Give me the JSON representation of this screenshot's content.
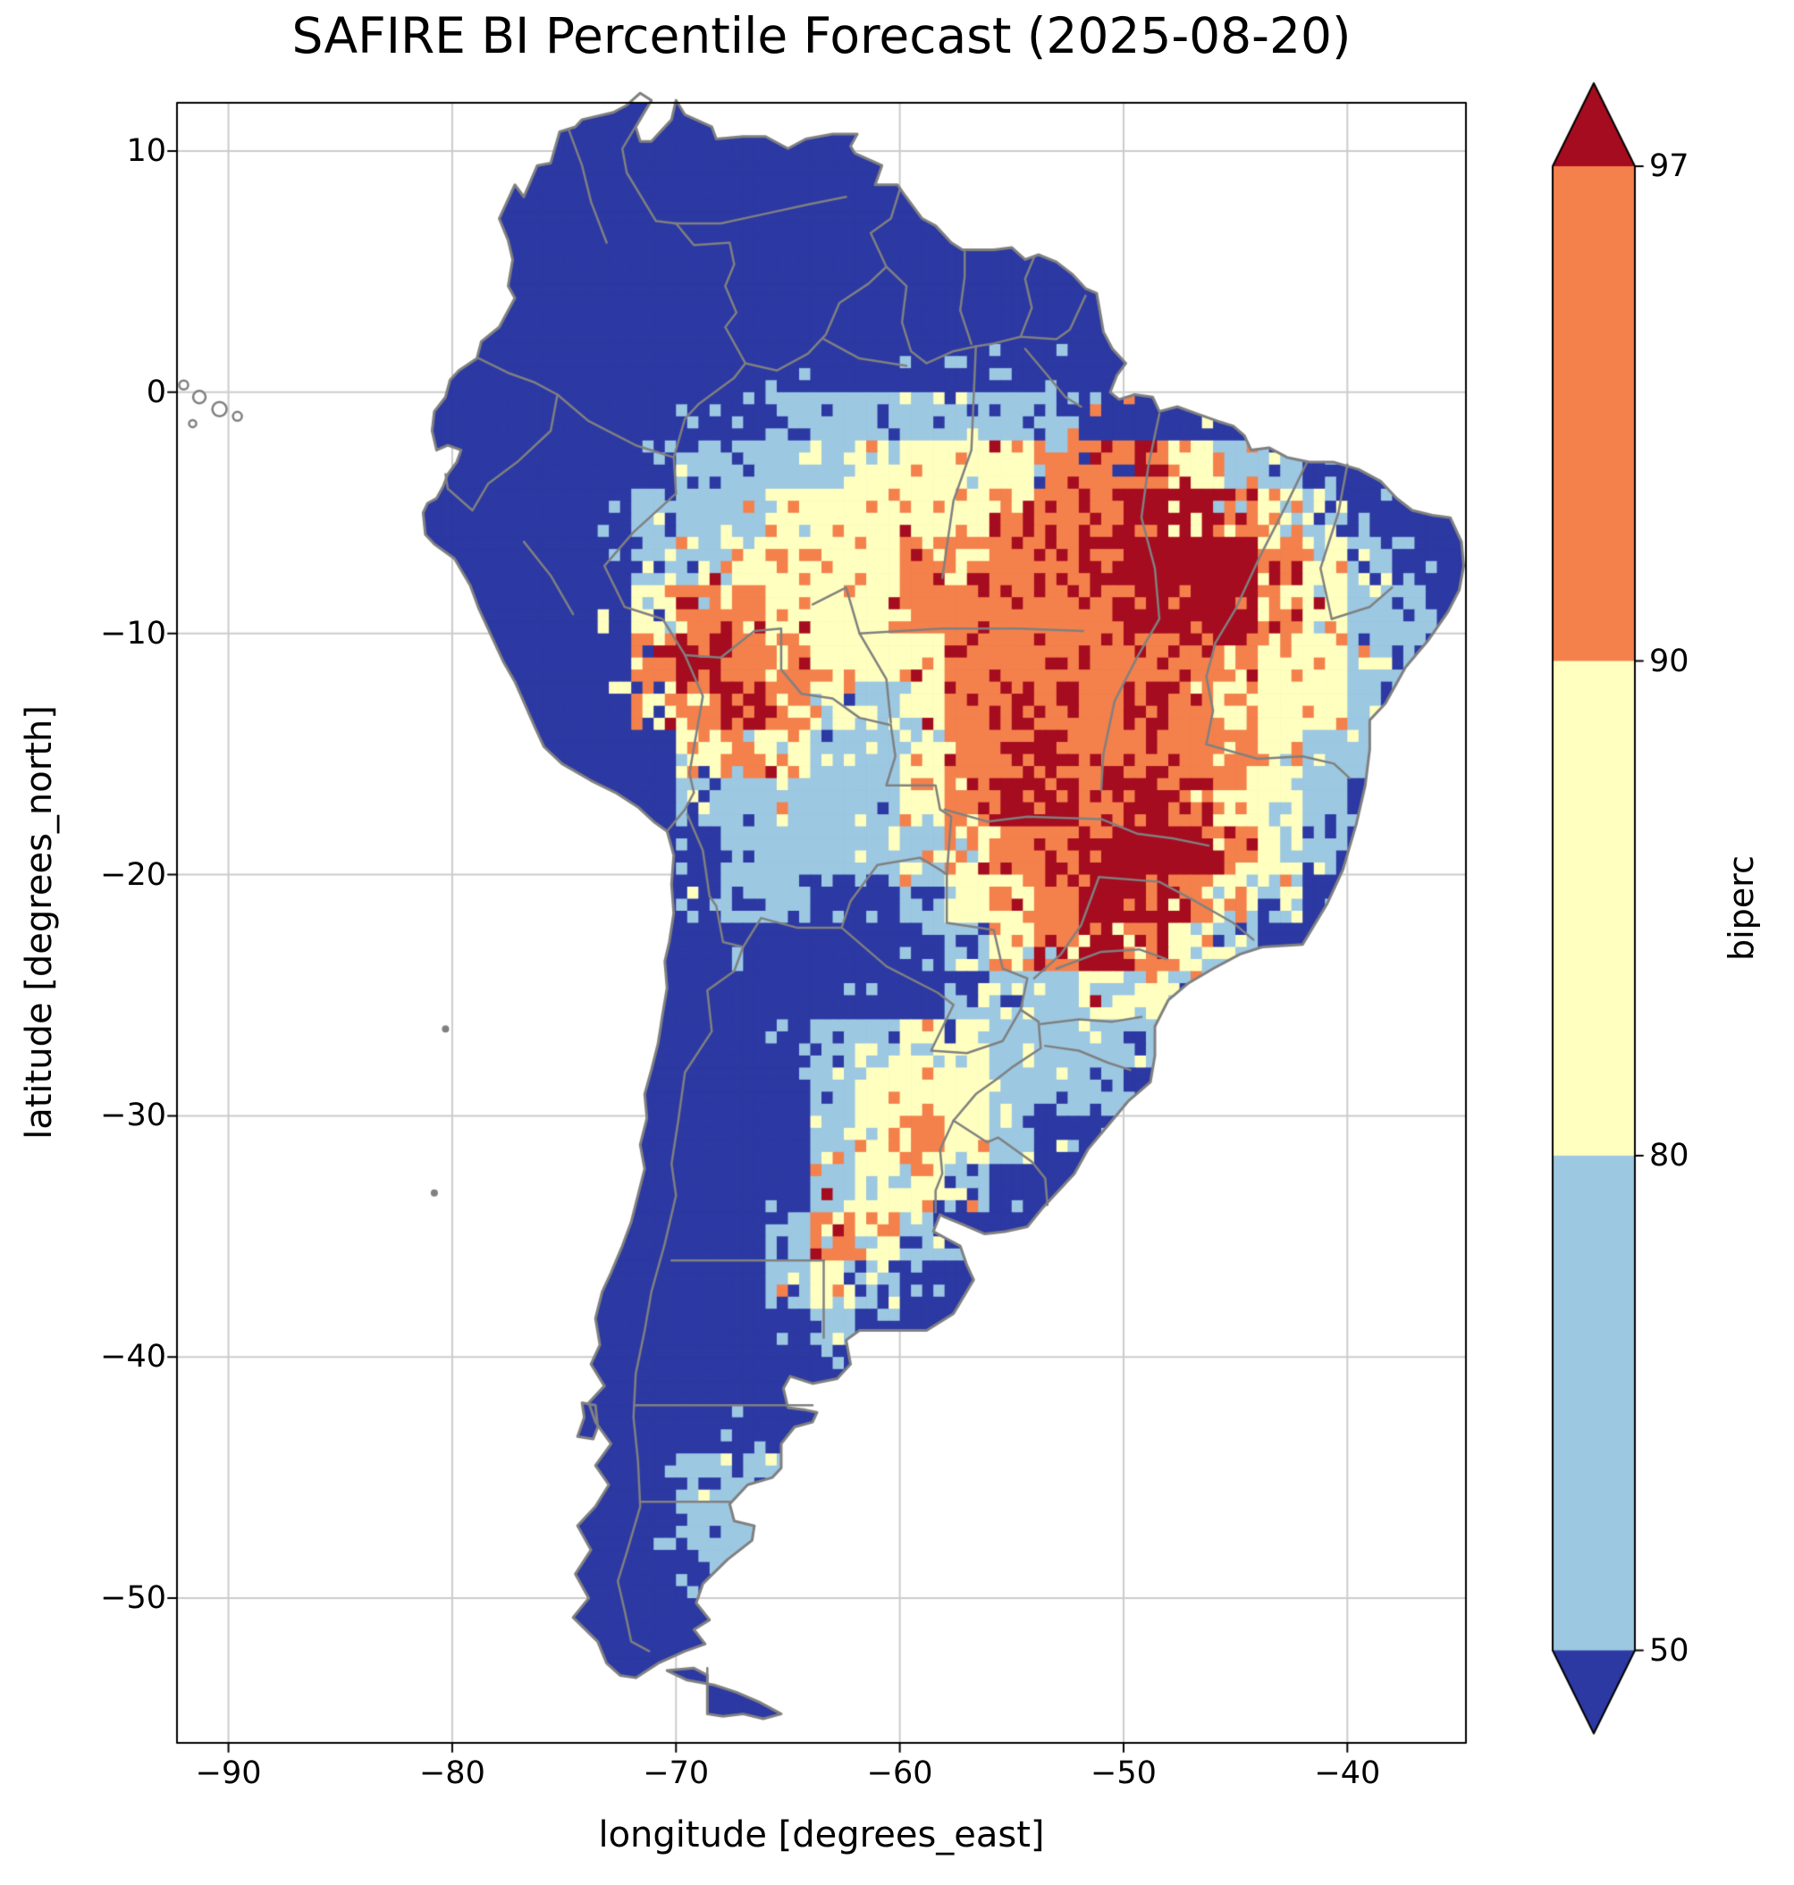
{
  "title": "SAFIRE BI Percentile Forecast (2025-08-20)",
  "axes": {
    "xlabel": "longitude [degrees_east]",
    "ylabel": "latitude [degrees_north]",
    "x_ticks": [
      {
        "lon": -90,
        "label": "−90"
      },
      {
        "lon": -80,
        "label": "−80"
      },
      {
        "lon": -70,
        "label": "−70"
      },
      {
        "lon": -60,
        "label": "−60"
      },
      {
        "lon": -50,
        "label": "−50"
      },
      {
        "lon": -40,
        "label": "−40"
      }
    ],
    "y_ticks": [
      {
        "lat": 10,
        "label": "10"
      },
      {
        "lat": 0,
        "label": "0"
      },
      {
        "lat": -10,
        "label": "−10"
      },
      {
        "lat": -20,
        "label": "−20"
      },
      {
        "lat": -30,
        "label": "−30"
      },
      {
        "lat": -40,
        "label": "−40"
      },
      {
        "lat": -50,
        "label": "−50"
      }
    ],
    "lon_min": -92.3,
    "lon_max": -34.7,
    "lat_min": -56,
    "lat_max": 12
  },
  "colorbar": {
    "label": "biperc",
    "ticks": [
      "97",
      "90",
      "80",
      "50"
    ],
    "tick_values_top_to_bottom": [
      97,
      90,
      80,
      50
    ],
    "extend": "both"
  },
  "style": {
    "grid_color": "#cccccc",
    "border_color": "#808080",
    "spine_color": "#000000"
  },
  "chart_data": {
    "type": "heatmap",
    "variable": "biperc",
    "forecast_date": "2025-08-20",
    "region": "South America",
    "levels": [
      50,
      80,
      90,
      97
    ],
    "category_labels": [
      "< 50",
      "50–80",
      "80–90",
      "90–97",
      "> 97"
    ],
    "colors": [
      "#2c39a3",
      "#9cc8e2",
      "#ffffbf",
      "#f4814c",
      "#a60c1f"
    ],
    "grid": {
      "lon_start": -92,
      "lon_step": 2,
      "lat_start": 12,
      "lat_step": -2,
      "ncols": 29,
      "nrows": 34,
      "rows": [
        "00000000000000000000000000000",
        "00000000000000000000000000000",
        "00000000000000000000000000000",
        "00000000000000000000000000000",
        "00000000000000000000000000000",
        "00000000000000000000000000000",
        "00000000000001111111000000000",
        "00000000000111122223332110000",
        "00000000001112222233344321000",
        "00000000001122223233444432100",
        "00000000002332223333344432110",
        "00000000003433222333333322110",
        "00000000002343212343343222100",
        "00000000000232112334333321100",
        "00000000000111112344343221000",
        "00000000000011111233444321000",
        "00000000000011001223443210000",
        "00000000000000000123432100000",
        "00000000000000000011221100000",
        "00000000000000112211110000000",
        "00000000000000122211100000000",
        "00000000000000123210000000000",
        "00000000000000122100000000000",
        "00000000000001321000000000000",
        "00000000000001210000000000000",
        "00000000000000100000000000000",
        "00000000000000000000000000000",
        "00000000000000000000000000000",
        "00000000000111000000000000000",
        "00000000000111000000000000000",
        "00000000000011000000000000000",
        "00000000000001000000000000000",
        "00000000000000000000000000000",
        "00000000000000000000000000000"
      ]
    }
  },
  "geo": {
    "coastline": [
      -77.2,
      8.6,
      -76.8,
      8.1,
      -76.2,
      9.4,
      -75.6,
      9.5,
      -75.2,
      10.8,
      -74.5,
      11.0,
      -74.2,
      11.3,
      -72.8,
      11.6,
      -72.2,
      11.9,
      -71.6,
      12.4,
      -71.1,
      12.1,
      -71.8,
      11.0,
      -71.6,
      10.4,
      -71.1,
      10.4,
      -70.2,
      11.3,
      -70.0,
      12.1,
      -69.6,
      11.5,
      -68.4,
      11.0,
      -68.2,
      10.5,
      -67.0,
      10.6,
      -66.0,
      10.6,
      -65.0,
      10.1,
      -64.2,
      10.5,
      -63.0,
      10.7,
      -61.9,
      10.7,
      -62.2,
      10.2,
      -62.0,
      9.9,
      -60.8,
      9.4,
      -61.1,
      8.6,
      -60.1,
      8.6,
      -59.8,
      8.2,
      -59.0,
      7.2,
      -58.4,
      6.9,
      -57.7,
      6.2,
      -57.2,
      5.9,
      -56.5,
      5.9,
      -55.8,
      5.9,
      -55.0,
      6.0,
      -54.4,
      5.5,
      -53.8,
      5.7,
      -53.0,
      5.4,
      -52.3,
      4.9,
      -51.7,
      4.3,
      -51.2,
      4.1,
      -50.9,
      2.5,
      -50.5,
      1.8,
      -49.9,
      1.2,
      -50.3,
      0.7,
      -50.6,
      0.0,
      -50.2,
      -0.3,
      -49.5,
      -0.1,
      -48.7,
      -0.2,
      -48.4,
      -0.8,
      -47.6,
      -0.6,
      -46.7,
      -0.9,
      -45.8,
      -1.2,
      -45.1,
      -1.4,
      -44.6,
      -1.8,
      -44.3,
      -2.4,
      -43.5,
      -2.3,
      -42.7,
      -2.7,
      -41.7,
      -2.9,
      -40.6,
      -2.9,
      -39.5,
      -3.2,
      -38.5,
      -3.7,
      -37.8,
      -4.4,
      -37.1,
      -4.9,
      -36.2,
      -5.1,
      -35.4,
      -5.2,
      -34.9,
      -6.2,
      -34.8,
      -7.2,
      -35.0,
      -8.2,
      -35.5,
      -9.1,
      -36.4,
      -10.3,
      -37.4,
      -11.4,
      -38.3,
      -12.9,
      -39.0,
      -13.6,
      -39.0,
      -14.8,
      -39.2,
      -16.3,
      -39.6,
      -17.9,
      -40.2,
      -19.8,
      -40.9,
      -21.2,
      -42.0,
      -22.9,
      -43.8,
      -23.0,
      -44.8,
      -23.3,
      -46.0,
      -23.9,
      -47.1,
      -24.5,
      -48.0,
      -25.2,
      -48.6,
      -26.3,
      -48.6,
      -27.5,
      -48.8,
      -28.6,
      -49.8,
      -29.4,
      -50.7,
      -30.4,
      -51.6,
      -31.4,
      -52.2,
      -32.4,
      -53.0,
      -33.2,
      -53.6,
      -33.8,
      -54.3,
      -34.6,
      -55.3,
      -34.8,
      -56.2,
      -34.9,
      -57.2,
      -34.5,
      -58.0,
      -34.2,
      -58.2,
      -34.1,
      -58.5,
      -34.8,
      -57.9,
      -35.1,
      -57.3,
      -35.4,
      -57.0,
      -36.2,
      -56.7,
      -36.8,
      -57.6,
      -38.2,
      -58.8,
      -38.9,
      -60.3,
      -38.9,
      -61.8,
      -38.9,
      -62.4,
      -39.3,
      -62.2,
      -40.3,
      -62.8,
      -40.9,
      -63.9,
      -41.1,
      -64.9,
      -40.8,
      -65.2,
      -41.3,
      -65.0,
      -42.1,
      -64.2,
      -42.2,
      -63.7,
      -42.3,
      -63.9,
      -42.7,
      -64.7,
      -42.9,
      -65.3,
      -43.6,
      -65.3,
      -44.6,
      -65.7,
      -45.0,
      -66.8,
      -45.3,
      -67.6,
      -46.1,
      -67.4,
      -46.8,
      -66.5,
      -47.0,
      -66.6,
      -47.6,
      -67.7,
      -48.4,
      -68.8,
      -49.4,
      -69.1,
      -50.2,
      -68.5,
      -50.9,
      -69.2,
      -51.3,
      -68.7,
      -51.9,
      -69.6,
      -52.2,
      -70.8,
      -52.7,
      -71.8,
      -53.3,
      -72.5,
      -53.2,
      -73.1,
      -52.7,
      -73.5,
      -51.8,
      -74.6,
      -50.8,
      -73.9,
      -50.0,
      -74.5,
      -49.0,
      -73.8,
      -48.0,
      -74.4,
      -47.0,
      -73.6,
      -46.2,
      -73.0,
      -45.3,
      -73.6,
      -44.5,
      -72.9,
      -43.6,
      -73.6,
      -42.7,
      -73.9,
      -41.9,
      -73.2,
      -41.2,
      -73.8,
      -40.3,
      -73.4,
      -39.5,
      -73.6,
      -38.4,
      -73.3,
      -37.3,
      -72.9,
      -36.5,
      -72.4,
      -35.4,
      -72.0,
      -34.4,
      -71.7,
      -33.3,
      -71.4,
      -32.2,
      -71.6,
      -31.2,
      -71.3,
      -30.1,
      -71.4,
      -29.1,
      -71.1,
      -28.1,
      -70.8,
      -27.0,
      -70.6,
      -25.8,
      -70.4,
      -24.7,
      -70.5,
      -23.6,
      -70.3,
      -22.8,
      -70.1,
      -21.6,
      -70.2,
      -20.4,
      -70.1,
      -19.2,
      -70.4,
      -18.2,
      -71.0,
      -17.8,
      -71.7,
      -17.2,
      -72.7,
      -16.6,
      -73.8,
      -16.1,
      -75.1,
      -15.4,
      -75.9,
      -14.7,
      -76.3,
      -13.9,
      -77.2,
      -12.0,
      -77.7,
      -11.2,
      -78.2,
      -10.2,
      -78.8,
      -9.0,
      -79.2,
      -8.0,
      -79.9,
      -6.9,
      -80.8,
      -6.3,
      -81.2,
      -5.9,
      -81.3,
      -5.0,
      -81.1,
      -4.6,
      -80.7,
      -4.4,
      -80.4,
      -3.9,
      -80.2,
      -3.4,
      -79.8,
      -2.9,
      -79.6,
      -2.4,
      -80.2,
      -2.2,
      -80.7,
      -2.4,
      -80.9,
      -1.6,
      -80.8,
      -0.8,
      -80.3,
      -0.2,
      -80.1,
      0.5,
      -79.7,
      0.9,
      -78.9,
      1.4,
      -78.7,
      2.1,
      -77.9,
      2.7,
      -77.2,
      3.9,
      -77.5,
      4.4,
      -77.3,
      5.5,
      -77.5,
      6.3,
      -77.9,
      7.2,
      -77.6,
      7.8
    ],
    "tierra_del_fuego": [
      -70.4,
      -53.0,
      -69.2,
      -52.9,
      -68.6,
      -53.2,
      -68.6,
      -54.8,
      -67.9,
      -54.9,
      -67.0,
      -54.8,
      -66.1,
      -55.0,
      -65.3,
      -54.8,
      -66.3,
      -54.3,
      -67.3,
      -53.9,
      -68.3,
      -53.6,
      -69.5,
      -53.4
    ],
    "chiloe": [
      -74.2,
      -41.9,
      -73.6,
      -42.0,
      -73.5,
      -42.9,
      -73.7,
      -43.4,
      -74.4,
      -43.3,
      -74.1,
      -42.5
    ],
    "islands_outline": [
      {
        "lon": -92.0,
        "lat": 0.3,
        "r": 5
      },
      {
        "lon": -91.3,
        "lat": -0.2,
        "r": 7
      },
      {
        "lon": -90.4,
        "lat": -0.7,
        "r": 8
      },
      {
        "lon": -89.6,
        "lat": -1.0,
        "r": 5
      },
      {
        "lon": -91.6,
        "lat": -1.3,
        "r": 4
      }
    ],
    "islands_dot": [
      {
        "lon": -80.3,
        "lat": -26.4,
        "r": 4
      },
      {
        "lon": -80.8,
        "lat": -33.2,
        "r": 4
      }
    ],
    "borders": [
      [
        -71.3,
        11.8,
        -72.4,
        10.1,
        -72.2,
        9.1,
        -70.9,
        7.1,
        -70.0,
        7.0,
        -69.2,
        6.1,
        -67.6,
        6.2,
        -67.4,
        5.3,
        -67.8,
        4.4,
        -67.3,
        3.3,
        -67.8,
        2.7,
        -66.9,
        1.2
      ],
      [
        -66.9,
        1.2,
        -65.5,
        0.9,
        -64.1,
        1.6,
        -63.3,
        2.4,
        -62.7,
        3.7,
        -61.4,
        4.5,
        -60.6,
        5.2
      ],
      [
        -60.6,
        5.2,
        -61.3,
        6.6,
        -60.4,
        7.2,
        -60.0,
        8.4
      ],
      [
        -60.6,
        5.2,
        -59.7,
        4.4,
        -59.9,
        2.9,
        -59.5,
        1.7,
        -58.8,
        1.2,
        -57.6,
        1.7,
        -56.6,
        1.9
      ],
      [
        -57.1,
        5.9,
        -57.1,
        4.8,
        -57.3,
        3.4,
        -56.8,
        2.0
      ],
      [
        -54.0,
        5.6,
        -54.4,
        4.7,
        -54.1,
        3.5,
        -54.6,
        2.3
      ],
      [
        -56.6,
        1.9,
        -55.9,
        2.0,
        -54.6,
        2.3,
        -53.0,
        2.2,
        -52.4,
        2.6,
        -51.7,
        4.0
      ],
      [
        -78.8,
        1.4,
        -77.5,
        0.8,
        -76.3,
        0.4,
        -75.3,
        -0.1
      ],
      [
        -80.3,
        -3.4,
        -80.2,
        -4.0,
        -79.1,
        -4.9,
        -78.4,
        -3.8,
        -77.1,
        -2.9,
        -75.6,
        -1.6,
        -75.3,
        -0.1
      ],
      [
        -75.3,
        -0.1,
        -73.9,
        -1.2,
        -71.8,
        -2.2,
        -70.1,
        -2.7,
        -70.0,
        -4.2
      ],
      [
        -66.9,
        1.2,
        -67.4,
        0.6,
        -69.0,
        -0.5,
        -69.6,
        -1.1,
        -70.1,
        -2.7
      ],
      [
        -70.0,
        -4.2,
        -71.9,
        -5.8,
        -73.2,
        -7.2,
        -72.3,
        -8.9,
        -70.6,
        -9.4,
        -69.6,
        -10.9
      ],
      [
        -69.6,
        -10.9,
        -68.8,
        -12.6,
        -69.1,
        -14.2,
        -69.4,
        -15.8,
        -69.2,
        -16.6,
        -69.6,
        -17.3,
        -70.4,
        -18.2
      ],
      [
        -69.6,
        -10.9,
        -68.0,
        -11.0,
        -66.5,
        -9.9,
        -65.3,
        -9.8,
        -65.3,
        -11.5,
        -64.4,
        -12.5,
        -63.0,
        -12.7,
        -61.8,
        -13.5,
        -60.4,
        -13.8,
        -60.2,
        -15.1,
        -60.6,
        -16.3,
        -58.4,
        -16.3,
        -58.2,
        -17.3,
        -57.7,
        -17.6,
        -57.9,
        -20.0
      ],
      [
        -69.5,
        -17.5,
        -68.8,
        -19.0,
        -68.5,
        -20.9,
        -68.2,
        -21.3,
        -67.9,
        -22.8,
        -67.0,
        -23.0
      ],
      [
        -67.0,
        -23.0,
        -67.4,
        -24.0,
        -68.6,
        -24.8,
        -68.4,
        -26.5,
        -69.6,
        -28.2,
        -69.9,
        -30.2,
        -70.2,
        -32.0,
        -70.0,
        -33.3,
        -70.5,
        -35.3,
        -71.1,
        -37.3,
        -71.4,
        -38.9,
        -71.8,
        -40.7,
        -71.9,
        -42.5,
        -71.7,
        -44.3,
        -71.6,
        -46.2,
        -72.2,
        -48.1,
        -72.6,
        -49.3,
        -72.3,
        -50.5,
        -72.0,
        -51.8,
        -71.2,
        -52.2
      ],
      [
        -67.0,
        -23.0,
        -66.2,
        -21.8,
        -64.6,
        -22.2,
        -62.6,
        -22.2
      ],
      [
        -62.6,
        -22.2,
        -62.2,
        -21.1,
        -61.0,
        -19.6,
        -59.1,
        -19.3,
        -58.2,
        -19.8,
        -57.9,
        -20.0
      ],
      [
        -57.9,
        -20.0,
        -57.9,
        -22.0,
        -55.8,
        -22.3,
        -55.4,
        -23.9,
        -54.3,
        -24.3,
        -54.6,
        -25.6
      ],
      [
        -62.6,
        -22.2,
        -60.6,
        -23.8,
        -58.3,
        -24.9,
        -57.6,
        -25.4,
        -58.6,
        -27.3,
        -57.0,
        -27.4,
        -55.4,
        -26.9,
        -54.6,
        -25.6
      ],
      [
        -54.6,
        -25.6,
        -53.8,
        -26.1,
        -53.7,
        -27.2,
        -55.0,
        -28.0,
        -55.7,
        -28.5,
        -56.6,
        -29.1,
        -57.6,
        -30.2
      ],
      [
        -57.6,
        -30.2,
        -56.1,
        -31.1,
        -55.6,
        -30.9,
        -54.1,
        -31.9,
        -53.5,
        -32.6,
        -53.4,
        -33.7
      ],
      [
        -57.6,
        -30.2,
        -58.2,
        -31.4,
        -58.1,
        -32.4,
        -58.4,
        -33.1,
        -58.4,
        -34.0
      ],
      [
        -68.6,
        -52.9,
        -68.6,
        -54.8
      ],
      [
        -56.6,
        1.9,
        -56.8,
        -2.4,
        -57.6,
        -4.5,
        -58.1,
        -7.7
      ],
      [
        -61.8,
        -10.0,
        -58.1,
        -9.8,
        -54.7,
        -9.8,
        -51.8,
        -9.9
      ],
      [
        -63.9,
        -8.8,
        -62.4,
        -8.1,
        -61.8,
        -10.0,
        -60.6,
        -11.9,
        -60.4,
        -13.7
      ],
      [
        -48.4,
        -0.9,
        -48.9,
        -3.1,
        -49.2,
        -5.2,
        -48.6,
        -7.3,
        -48.4,
        -9.4,
        -49.4,
        -11.0,
        -50.4,
        -12.8,
        -50.9,
        -15.0,
        -51.0,
        -16.5
      ],
      [
        -45.9,
        -10.4,
        -46.3,
        -11.8,
        -46.0,
        -13.2,
        -46.3,
        -14.6
      ],
      [
        -41.8,
        -2.9,
        -42.8,
        -4.8,
        -43.9,
        -6.8,
        -45.0,
        -9.0,
        -45.9,
        -10.4
      ],
      [
        -40.0,
        -3.0,
        -40.4,
        -5.0,
        -41.2,
        -7.3,
        -40.7,
        -9.4
      ],
      [
        -40.7,
        -9.4,
        -39.0,
        -8.9,
        -38.0,
        -8.1
      ],
      [
        -46.3,
        -14.6,
        -44.0,
        -15.2,
        -42.0,
        -15.1,
        -40.6,
        -15.4,
        -39.9,
        -16.0
      ],
      [
        -58.0,
        -17.3,
        -56.1,
        -17.8,
        -54.3,
        -17.6,
        -51.0,
        -17.7
      ],
      [
        -51.0,
        -17.7,
        -49.4,
        -18.3,
        -47.8,
        -18.5,
        -46.2,
        -18.8
      ],
      [
        -51.1,
        -20.1,
        -48.4,
        -20.3,
        -46.8,
        -21.1,
        -45.1,
        -22.0,
        -44.2,
        -22.7
      ],
      [
        -51.1,
        -20.1,
        -51.9,
        -22.1,
        -52.8,
        -23.3,
        -54.0,
        -24.3
      ],
      [
        -53.0,
        -23.9,
        -51.0,
        -23.2,
        -49.3,
        -23.1,
        -48.1,
        -23.5
      ],
      [
        -53.7,
        -26.2,
        -52.0,
        -26.0,
        -50.5,
        -26.1,
        -49.2,
        -25.9
      ],
      [
        -53.5,
        -27.1,
        -52.0,
        -27.3,
        -50.7,
        -27.8,
        -49.7,
        -28.1
      ],
      [
        -63.4,
        2.2,
        -61.8,
        1.4,
        -60.4,
        1.2,
        -59.7,
        1.1
      ],
      [
        -54.4,
        1.8,
        -53.4,
        0.7,
        -52.6,
        -0.2,
        -51.9,
        -0.6
      ],
      [
        -70.1,
        7.0,
        -68.0,
        7.0,
        -66.0,
        7.4,
        -64.0,
        7.8,
        -62.4,
        8.1
      ],
      [
        -74.8,
        10.9,
        -74.2,
        9.4,
        -73.8,
        7.9,
        -73.1,
        6.2
      ],
      [
        -76.8,
        -6.2,
        -75.6,
        -7.6,
        -74.6,
        -9.2
      ],
      [
        -70.2,
        -36.0,
        -63.4,
        -36.0
      ],
      [
        -63.4,
        -36.0,
        -63.4,
        -39.2
      ],
      [
        -71.8,
        -42.0,
        -63.9,
        -42.0
      ],
      [
        -71.6,
        -46.0,
        -67.6,
        -46.0
      ]
    ]
  }
}
